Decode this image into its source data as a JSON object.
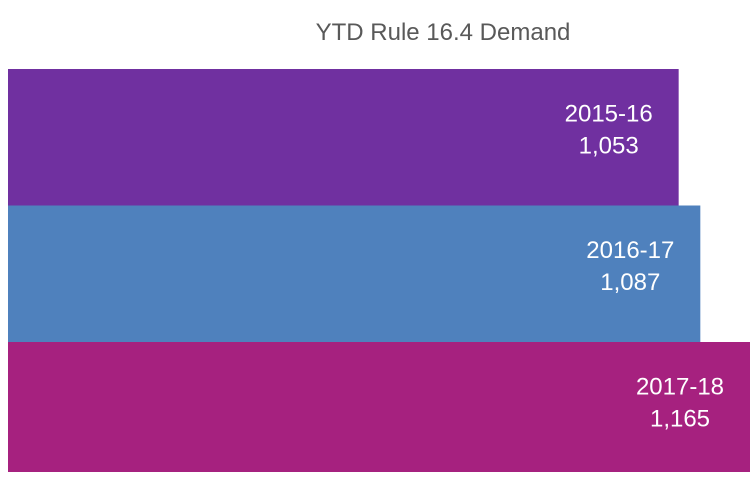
{
  "chart_data": {
    "type": "bar",
    "orientation": "horizontal",
    "title": "YTD Rule 16.4 Demand",
    "categories": [
      "2015-16",
      "2016-17",
      "2017-18"
    ],
    "values": [
      1053,
      1087,
      1165
    ],
    "value_labels": [
      "1,053",
      "1,087",
      "1,165"
    ],
    "colors": [
      "#7030a0",
      "#4f81bd",
      "#a6217f"
    ]
  }
}
